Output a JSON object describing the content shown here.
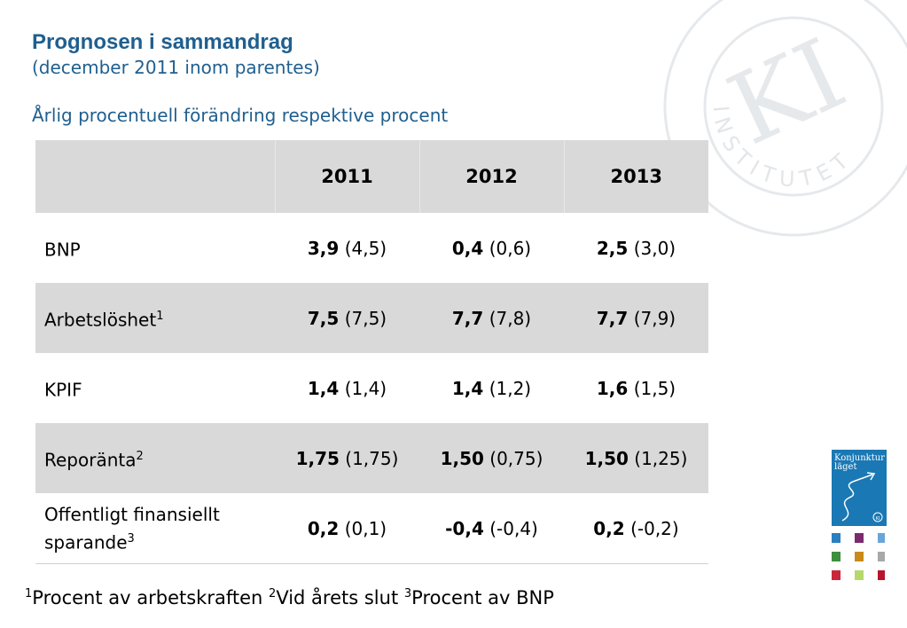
{
  "header": {
    "title": "Prognosen i sammandrag",
    "subtitle": "(december 2011 inom parentes)",
    "caption": "Årlig procentuell förändring respektive procent"
  },
  "table": {
    "columns": [
      "",
      "2011",
      "2012",
      "2013"
    ],
    "rows": [
      {
        "label": "BNP",
        "sup": "",
        "label_line2": "",
        "sup2": "",
        "shaded": false,
        "cells": [
          {
            "bold": "3,9",
            "paren": "(4,5)"
          },
          {
            "bold": "0,4",
            "paren": "(0,6)"
          },
          {
            "bold": "2,5",
            "paren": "(3,0)"
          }
        ]
      },
      {
        "label": "Arbetslöshet",
        "sup": "1",
        "label_line2": "",
        "sup2": "",
        "shaded": true,
        "cells": [
          {
            "bold": "7,5",
            "paren": "(7,5)"
          },
          {
            "bold": "7,7",
            "paren": "(7,8)"
          },
          {
            "bold": "7,7",
            "paren": "(7,9)"
          }
        ]
      },
      {
        "label": "KPIF",
        "sup": "",
        "label_line2": "",
        "sup2": "",
        "shaded": false,
        "cells": [
          {
            "bold": "1,4",
            "paren": "(1,4)"
          },
          {
            "bold": "1,4",
            "paren": "(1,2)"
          },
          {
            "bold": "1,6",
            "paren": "(1,5)"
          }
        ]
      },
      {
        "label": "Reporänta",
        "sup": "2",
        "label_line2": "",
        "sup2": "",
        "shaded": true,
        "cells": [
          {
            "bold": "1,75",
            "paren": "(1,75)"
          },
          {
            "bold": "1,50",
            "paren": "(0,75)"
          },
          {
            "bold": "1,50",
            "paren": "(1,25)"
          }
        ]
      },
      {
        "label": "Offentligt finansiellt",
        "sup": "",
        "label_line2": "sparande",
        "sup2": "3",
        "shaded": false,
        "cells": [
          {
            "bold": "0,2",
            "paren": "(0,1)"
          },
          {
            "bold": "-0,4",
            "paren": "(-0,4)"
          },
          {
            "bold": "0,2",
            "paren": "(-0,2)"
          }
        ]
      }
    ]
  },
  "footnotes": [
    {
      "num": "1",
      "text": "Procent av arbetskraften"
    },
    {
      "num": "2",
      "text": "Vid årets slut"
    },
    {
      "num": "3",
      "text": "Procent av BNP"
    }
  ],
  "logo": {
    "seal_monogram": "KI",
    "seal_ring_text": "INSTITUTET",
    "cover_title_1": "Konjunktur",
    "cover_title_2": "läget",
    "cover_badge": "KI"
  },
  "colors": {
    "title": "#1f5f8f",
    "header_fill": "#d9d9d9",
    "cover": "#1a78b4",
    "thumbs": [
      "#2a7fc0",
      "#7b2a6e",
      "#6aa5d8",
      "#3e8f3e",
      "#c98a1a",
      "#a8a8a8",
      "#c8283a",
      "#b6d86a",
      "#b8142c"
    ]
  }
}
